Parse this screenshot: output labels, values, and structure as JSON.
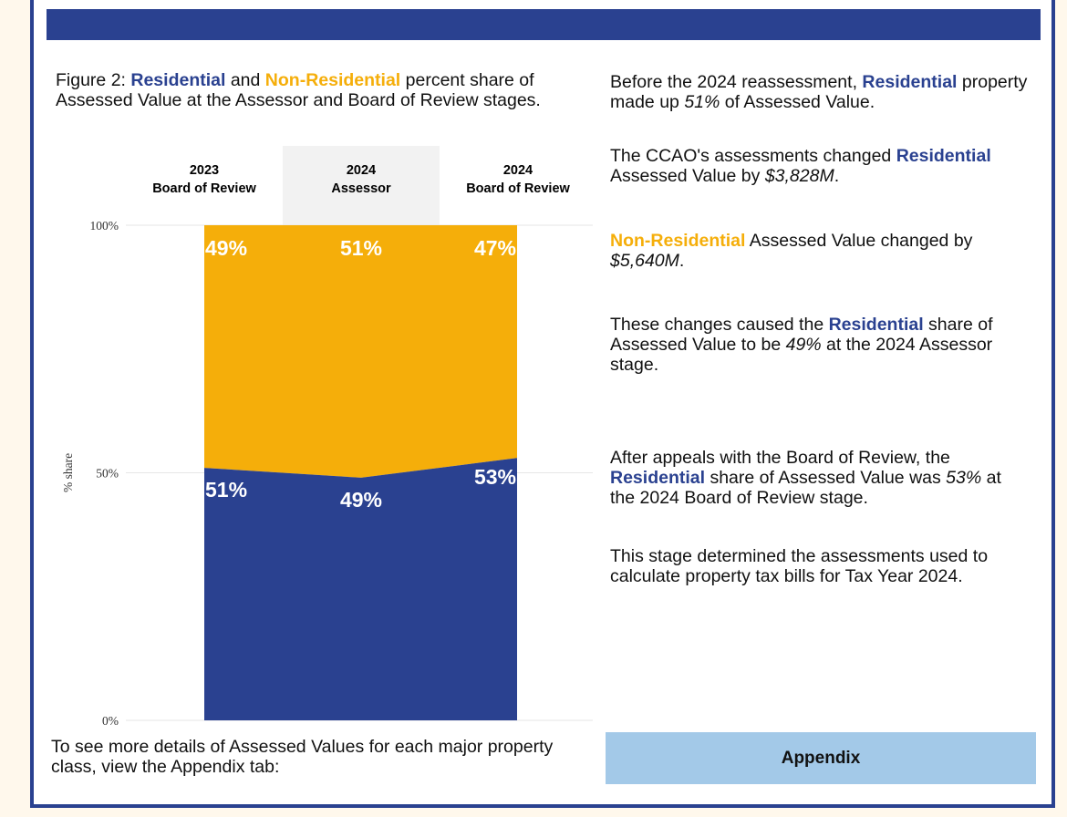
{
  "figure_caption": {
    "prefix": "Figure 2: ",
    "residential": "Residential",
    "and": " and ",
    "non_residential": "Non-Residential",
    "suffix": " percent share of Assessed Value at the Assessor and Board of Review stages."
  },
  "colors": {
    "residential": "#2a4190",
    "non_residential": "#f5ae0a",
    "highlight_column": "#f2f2f2",
    "appendix_button": "#a3c9e8"
  },
  "chart_data": {
    "type": "area",
    "stacked": true,
    "categories": [
      "2023\nBoard of Review",
      "2024\nAssessor",
      "2024\nBoard of Review"
    ],
    "category_lines": [
      [
        "2023",
        "Board of Review"
      ],
      [
        "2024",
        "Assessor"
      ],
      [
        "2024",
        "Board of Review"
      ]
    ],
    "highlighted_category": 1,
    "series": [
      {
        "name": "Residential",
        "values": [
          51,
          49,
          53
        ],
        "labels": [
          "51%",
          "49%",
          "53%"
        ]
      },
      {
        "name": "Non-Residential",
        "values": [
          49,
          51,
          47
        ],
        "labels": [
          "49%",
          "51%",
          "47%"
        ]
      }
    ],
    "ylabel": "% share",
    "ylim": [
      0,
      100
    ],
    "yticks": [
      0,
      50,
      100
    ],
    "ytick_labels": [
      "0%",
      "50%",
      "100%"
    ],
    "grid": true
  },
  "narrative": {
    "p1": {
      "a": "Before the 2024 reassessment, ",
      "residential": "Residential",
      "b": " property made up ",
      "pct": "51%",
      "c": " of Assessed Value."
    },
    "p2": {
      "a": "The CCAO's assessments changed ",
      "residential": "Residential",
      "b": " Assessed Value by ",
      "amount": "$3,828M",
      "c": "."
    },
    "p3": {
      "non_residential": "Non-Residential",
      "a": " Assessed Value changed by ",
      "amount": "$5,640M",
      "b": "."
    },
    "p4": {
      "a": "These changes caused the ",
      "residential": "Residential",
      "b": " share of Assessed Value to be ",
      "pct": "49%",
      "c": " at the 2024 Assessor stage."
    },
    "p5": {
      "a": "After appeals with the Board of Review, the ",
      "residential": "Residential",
      "b": " share of Assessed Value was ",
      "pct": "53%",
      "c": " at the 2024 Board of Review stage."
    },
    "p6": "This stage determined the assessments used to calculate property tax bills for Tax Year 2024."
  },
  "footer": {
    "text": "To see more details of Assessed Values for each major property class, view the Appendix tab:",
    "appendix_button": "Appendix"
  }
}
